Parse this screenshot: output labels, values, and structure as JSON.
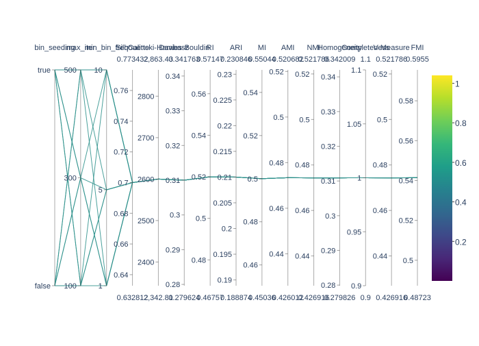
{
  "chart_data": {
    "type": "parallel-coordinates",
    "color_scale": {
      "name": "viridis",
      "stops": [
        "#440154",
        "#482878",
        "#3e4989",
        "#31688e",
        "#26828e",
        "#1f9e89",
        "#35b779",
        "#6ece58",
        "#b5de2b",
        "#fde725"
      ],
      "ticks": [
        "0.2",
        "0.4",
        "0.6",
        "0.8",
        "1"
      ],
      "tick_values": [
        0.2,
        0.4,
        0.6,
        0.8,
        1.0
      ],
      "range": [
        0.0,
        1.04
      ]
    },
    "line_color": "#2a8f8a",
    "line_color_value": 0.5,
    "dimensions": [
      {
        "label": "bin_seeding",
        "range": [
          0,
          1
        ],
        "ticks": [
          {
            "v": 1,
            "t": "true"
          },
          {
            "v": 0,
            "t": "false"
          }
        ],
        "tick_side": "left"
      },
      {
        "label": "max_iter",
        "range": [
          100,
          500
        ],
        "ticks": [
          {
            "v": 500,
            "t": "500"
          },
          {
            "v": 300,
            "t": "300"
          },
          {
            "v": 100,
            "t": "100"
          }
        ],
        "tick_side": "left"
      },
      {
        "label": "min_bin_freq",
        "range": [
          1,
          10
        ],
        "ticks": [
          {
            "v": 10,
            "t": "10"
          },
          {
            "v": 5,
            "t": "5"
          },
          {
            "v": 1,
            "t": "1"
          }
        ],
        "tick_side": "left"
      },
      {
        "label": "Silhouette",
        "range": [
          0.632812,
          0.773432
        ],
        "range_labels": [
          "0.632812",
          "0.773432"
        ],
        "ticks": [
          {
            "v": 0.76,
            "t": "0.76"
          },
          {
            "v": 0.74,
            "t": "0.74"
          },
          {
            "v": 0.72,
            "t": "0.72"
          },
          {
            "v": 0.7,
            "t": "0.7"
          },
          {
            "v": 0.68,
            "t": "0.68"
          },
          {
            "v": 0.66,
            "t": "0.66"
          },
          {
            "v": 0.64,
            "t": "0.64"
          }
        ]
      },
      {
        "label": "Calinski-Harabasz",
        "range": [
          2342.81,
          2863.43
        ],
        "range_labels": [
          "2,342.81",
          "2,863.43"
        ],
        "ticks": [
          {
            "v": 2800,
            "t": "2800"
          },
          {
            "v": 2700,
            "t": "2700"
          },
          {
            "v": 2600,
            "t": "2600"
          },
          {
            "v": 2500,
            "t": "2500"
          },
          {
            "v": 2400,
            "t": "2400"
          }
        ]
      },
      {
        "label": "Davies-Bouldin",
        "range": [
          0.279624,
          0.341763
        ],
        "range_labels": [
          "0.279624",
          "0.341763"
        ],
        "ticks": [
          {
            "v": 0.34,
            "t": "0.34"
          },
          {
            "v": 0.33,
            "t": "0.33"
          },
          {
            "v": 0.32,
            "t": "0.32"
          },
          {
            "v": 0.31,
            "t": "0.31"
          },
          {
            "v": 0.3,
            "t": "0.3"
          },
          {
            "v": 0.29,
            "t": "0.29"
          },
          {
            "v": 0.28,
            "t": "0.28"
          }
        ]
      },
      {
        "label": "RI",
        "range": [
          0.46757,
          0.57147
        ],
        "range_labels": [
          "0.46757",
          "0.57147"
        ],
        "ticks": [
          {
            "v": 0.56,
            "t": "0.56"
          },
          {
            "v": 0.54,
            "t": "0.54"
          },
          {
            "v": 0.52,
            "t": "0.52"
          },
          {
            "v": 0.5,
            "t": "0.5"
          },
          {
            "v": 0.48,
            "t": "0.48"
          }
        ]
      },
      {
        "label": "ARI",
        "range": [
          0.188874,
          0.230846
        ],
        "range_labels": [
          "0.188874",
          "0.230846"
        ],
        "ticks": [
          {
            "v": 0.23,
            "t": "0.23"
          },
          {
            "v": 0.225,
            "t": "0.225"
          },
          {
            "v": 0.22,
            "t": "0.22"
          },
          {
            "v": 0.215,
            "t": "0.215"
          },
          {
            "v": 0.21,
            "t": "0.21"
          },
          {
            "v": 0.205,
            "t": "0.205"
          },
          {
            "v": 0.2,
            "t": "0.2"
          },
          {
            "v": 0.195,
            "t": "0.195"
          },
          {
            "v": 0.19,
            "t": "0.19"
          }
        ]
      },
      {
        "label": "MI",
        "range": [
          0.45036,
          0.55044
        ],
        "range_labels": [
          "0.45036",
          "0.55044"
        ],
        "ticks": [
          {
            "v": 0.54,
            "t": "0.54"
          },
          {
            "v": 0.52,
            "t": "0.52"
          },
          {
            "v": 0.5,
            "t": "0.5"
          },
          {
            "v": 0.48,
            "t": "0.48"
          },
          {
            "v": 0.46,
            "t": "0.46"
          }
        ]
      },
      {
        "label": "AMI",
        "range": [
          0.426012,
          0.520682
        ],
        "range_labels": [
          "0.426012",
          "0.520682"
        ],
        "ticks": [
          {
            "v": 0.52,
            "t": "0.52"
          },
          {
            "v": 0.5,
            "t": "0.5"
          },
          {
            "v": 0.48,
            "t": "0.48"
          },
          {
            "v": 0.46,
            "t": "0.46"
          },
          {
            "v": 0.44,
            "t": "0.44"
          }
        ]
      },
      {
        "label": "NMI",
        "range": [
          0.426916,
          0.521786
        ],
        "range_labels": [
          "0.426916",
          "0.521786"
        ],
        "ticks": [
          {
            "v": 0.52,
            "t": "0.52"
          },
          {
            "v": 0.5,
            "t": "0.5"
          },
          {
            "v": 0.48,
            "t": "0.48"
          },
          {
            "v": 0.46,
            "t": "0.46"
          },
          {
            "v": 0.44,
            "t": "0.44"
          }
        ]
      },
      {
        "label": "Homogeneity",
        "range": [
          0.279826,
          0.342009
        ],
        "range_labels": [
          "0.279826",
          "0.342009"
        ],
        "ticks": [
          {
            "v": 0.34,
            "t": "0.34"
          },
          {
            "v": 0.33,
            "t": "0.33"
          },
          {
            "v": 0.32,
            "t": "0.32"
          },
          {
            "v": 0.31,
            "t": "0.31"
          },
          {
            "v": 0.3,
            "t": "0.3"
          },
          {
            "v": 0.29,
            "t": "0.29"
          },
          {
            "v": 0.28,
            "t": "0.28"
          }
        ]
      },
      {
        "label": "Completeness",
        "range": [
          0.9,
          1.1
        ],
        "range_labels": [
          "0.9",
          "1.1"
        ],
        "ticks": [
          {
            "v": 1.1,
            "t": "1.1"
          },
          {
            "v": 1.05,
            "t": "1.05"
          },
          {
            "v": 1.0,
            "t": "1"
          },
          {
            "v": 0.95,
            "t": "0.95"
          },
          {
            "v": 0.9,
            "t": "0.9"
          }
        ]
      },
      {
        "label": "V-Measure",
        "range": [
          0.426916,
          0.521786
        ],
        "range_labels": [
          "0.426916",
          "0.521786"
        ],
        "ticks": [
          {
            "v": 0.52,
            "t": "0.52"
          },
          {
            "v": 0.5,
            "t": "0.5"
          },
          {
            "v": 0.48,
            "t": "0.48"
          },
          {
            "v": 0.46,
            "t": "0.46"
          },
          {
            "v": 0.44,
            "t": "0.44"
          }
        ]
      },
      {
        "label": "FMI",
        "range": [
          0.48723,
          0.5955
        ],
        "range_labels": [
          "0.48723",
          "0.5955"
        ],
        "ticks": [
          {
            "v": 0.58,
            "t": "0.58"
          },
          {
            "v": 0.56,
            "t": "0.56"
          },
          {
            "v": 0.54,
            "t": "0.54"
          },
          {
            "v": 0.52,
            "t": "0.52"
          },
          {
            "v": 0.5,
            "t": "0.5"
          }
        ]
      }
    ],
    "series": [
      {
        "values": [
          1,
          500,
          10,
          0.7,
          2600,
          0.31,
          0.52,
          0.21,
          0.5,
          0.4734,
          0.4743,
          0.3109,
          1.0,
          0.4743,
          0.5414
        ]
      },
      {
        "values": [
          1,
          300,
          1,
          0.7,
          2600,
          0.31,
          0.52,
          0.21,
          0.5,
          0.4734,
          0.4743,
          0.3109,
          1.0,
          0.4743,
          0.5414
        ]
      },
      {
        "values": [
          1,
          100,
          5,
          0.7,
          2600,
          0.31,
          0.52,
          0.21,
          0.5,
          0.4734,
          0.4743,
          0.3109,
          1.0,
          0.4743,
          0.5414
        ]
      },
      {
        "values": [
          1,
          500,
          5,
          0.7,
          2600,
          0.31,
          0.52,
          0.21,
          0.5,
          0.4734,
          0.4743,
          0.3109,
          1.0,
          0.4743,
          0.5414
        ]
      },
      {
        "values": [
          1,
          300,
          10,
          0.7,
          2600,
          0.31,
          0.52,
          0.21,
          0.5,
          0.4734,
          0.4743,
          0.3109,
          1.0,
          0.4743,
          0.5414
        ]
      },
      {
        "values": [
          1,
          100,
          1,
          0.7,
          2600,
          0.31,
          0.52,
          0.21,
          0.5,
          0.4734,
          0.4743,
          0.3109,
          1.0,
          0.4743,
          0.5414
        ]
      },
      {
        "values": [
          0,
          500,
          1,
          0.7,
          2600,
          0.31,
          0.52,
          0.21,
          0.5,
          0.4734,
          0.4743,
          0.3109,
          1.0,
          0.4743,
          0.5414
        ]
      },
      {
        "values": [
          0,
          300,
          5,
          0.7,
          2600,
          0.31,
          0.52,
          0.21,
          0.5,
          0.4734,
          0.4743,
          0.3109,
          1.0,
          0.4743,
          0.5414
        ]
      },
      {
        "values": [
          0,
          100,
          10,
          0.7,
          2600,
          0.31,
          0.52,
          0.21,
          0.5,
          0.4734,
          0.4743,
          0.3109,
          1.0,
          0.4743,
          0.5414
        ]
      },
      {
        "values": [
          0,
          500,
          10,
          0.7,
          2600,
          0.31,
          0.52,
          0.21,
          0.5,
          0.4734,
          0.4743,
          0.3109,
          1.0,
          0.4743,
          0.5414
        ]
      },
      {
        "values": [
          0,
          300,
          1,
          0.7,
          2600,
          0.31,
          0.52,
          0.21,
          0.5,
          0.4734,
          0.4743,
          0.3109,
          1.0,
          0.4743,
          0.5414
        ]
      },
      {
        "values": [
          0,
          100,
          5,
          0.7,
          2600,
          0.31,
          0.52,
          0.21,
          0.5,
          0.4734,
          0.4743,
          0.3109,
          1.0,
          0.4743,
          0.5414
        ]
      }
    ]
  }
}
